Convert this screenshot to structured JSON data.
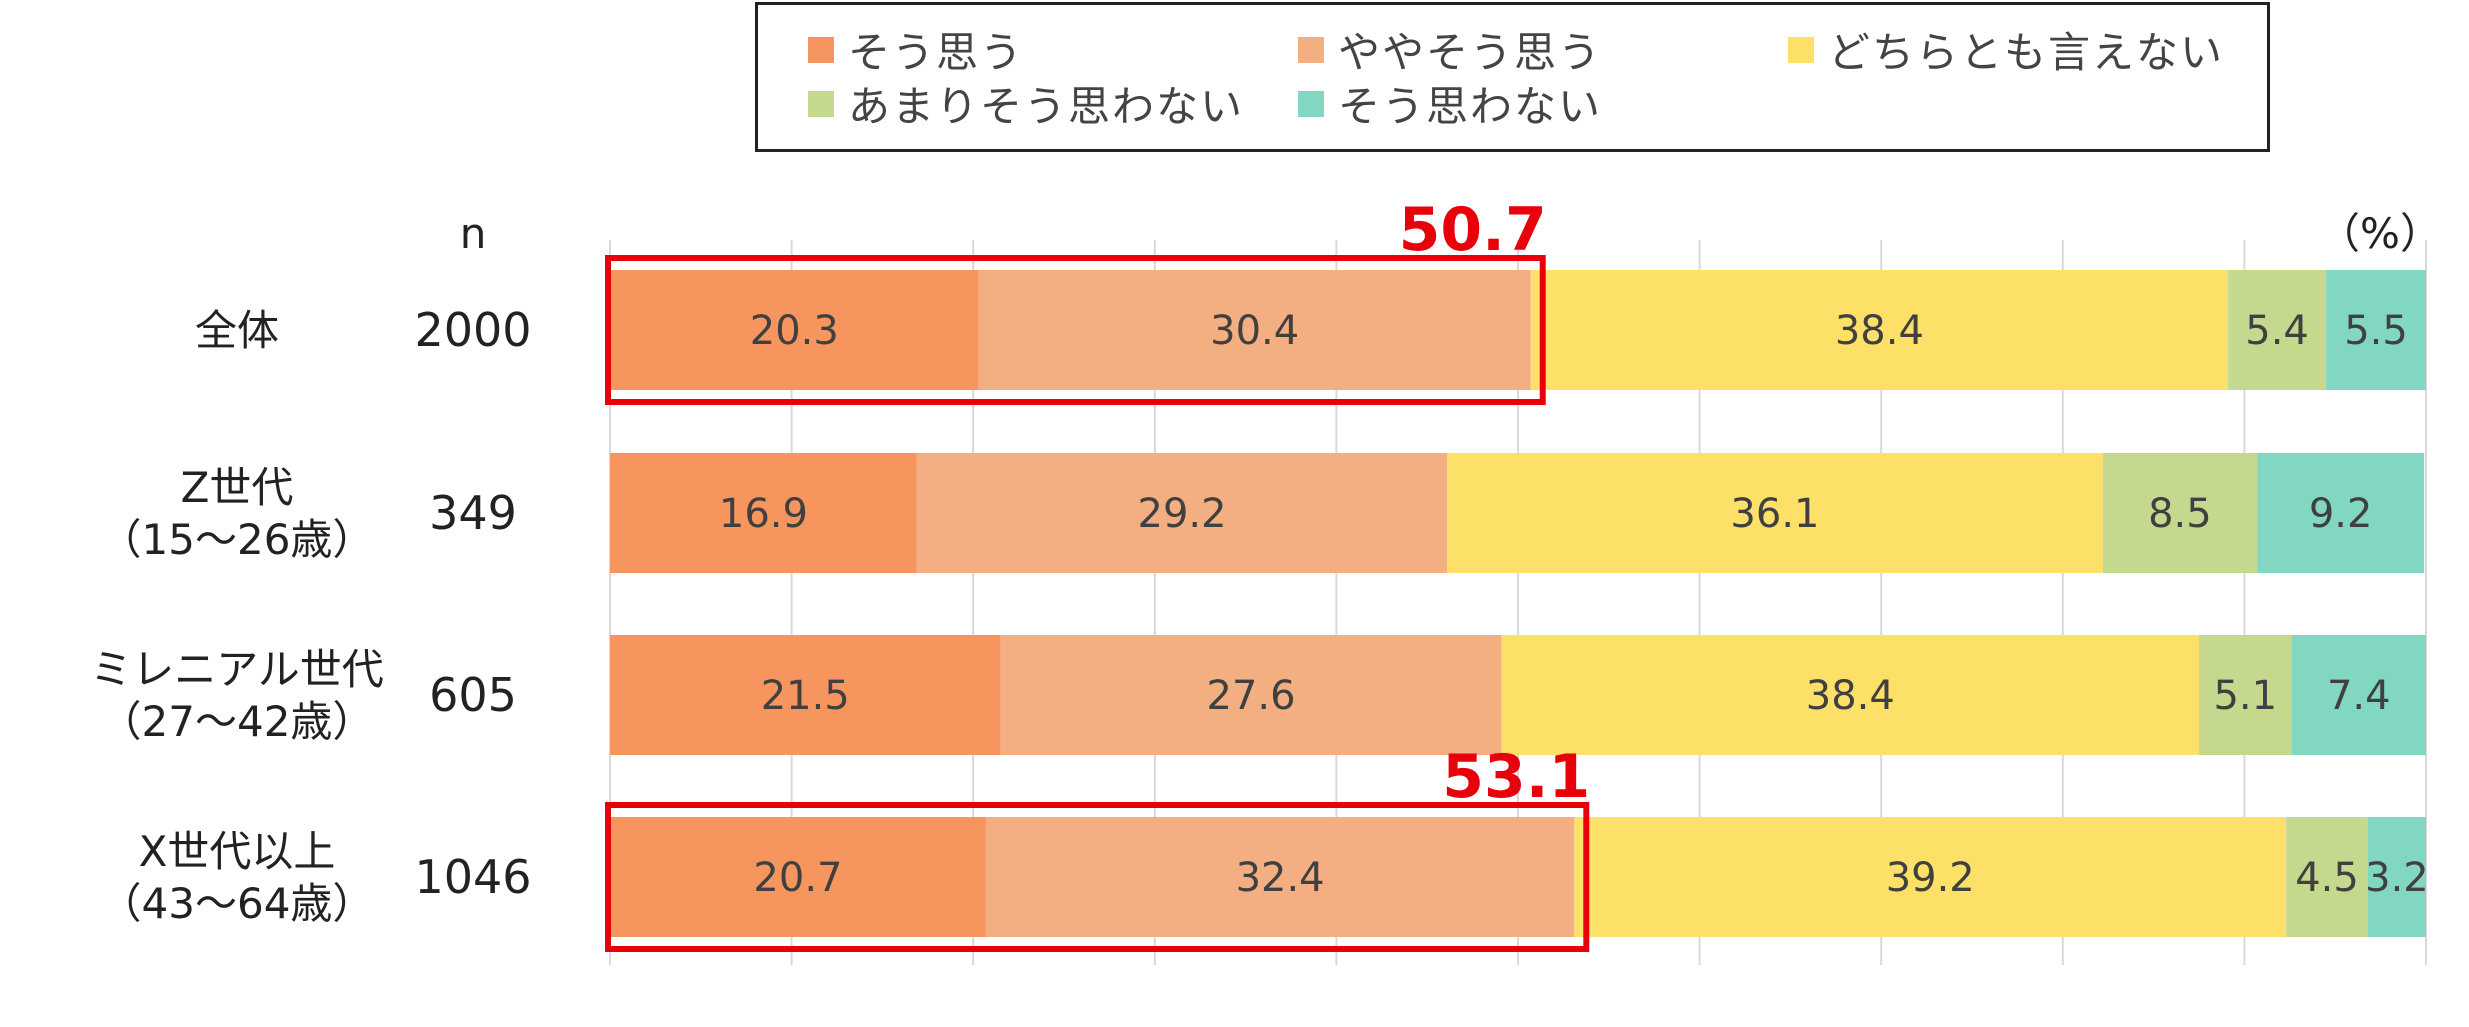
{
  "legend": {
    "items": [
      {
        "label": "そう思う",
        "color": "#F7955F"
      },
      {
        "label": "ややそう思う",
        "color": "#F3AE82"
      },
      {
        "label": "どちらとも言えない",
        "color": "#FDE068"
      },
      {
        "label": "あまりそう思わない",
        "color": "#C5D98E"
      },
      {
        "label": "そう思わない",
        "color": "#82D7C2"
      }
    ]
  },
  "chart_data": {
    "type": "bar",
    "orientation": "horizontal",
    "stacked": true,
    "xlim": [
      0,
      100
    ],
    "grid": true,
    "unit_label": "（%）",
    "n_header": "n",
    "rows": [
      {
        "label_lines": [
          "全体"
        ],
        "n": "2000"
      },
      {
        "label_lines": [
          "Z世代",
          "（15〜26歳）"
        ],
        "n": "349"
      },
      {
        "label_lines": [
          "ミレニアル世代",
          "（27〜42歳）"
        ],
        "n": "605"
      },
      {
        "label_lines": [
          "X世代以上",
          "（43〜64歳）"
        ],
        "n": "1046"
      }
    ],
    "series": [
      {
        "name": "そう思う",
        "color": "#F7955F",
        "values": [
          20.3,
          16.9,
          21.5,
          20.7
        ]
      },
      {
        "name": "ややそう思う",
        "color": "#F3AE82",
        "values": [
          30.4,
          29.2,
          27.6,
          32.4
        ]
      },
      {
        "name": "どちらとも言えない",
        "color": "#FDE068",
        "values": [
          38.4,
          36.1,
          38.4,
          39.2
        ]
      },
      {
        "name": "あまりそう思わない",
        "color": "#C5D98E",
        "values": [
          5.4,
          8.5,
          5.1,
          4.5
        ]
      },
      {
        "name": "そう思わない",
        "color": "#82D7C2",
        "values": [
          5.5,
          9.2,
          7.4,
          3.2
        ]
      }
    ],
    "value_labels": [
      [
        "20.3",
        "30.4",
        "38.4",
        "5.4",
        "5.5"
      ],
      [
        "16.9",
        "29.2",
        "36.1",
        "8.5",
        "9.2"
      ],
      [
        "21.5",
        "27.6",
        "38.4",
        "5.1",
        "7.4"
      ],
      [
        "20.7",
        "32.4",
        "39.2",
        "4.5",
        "3.2"
      ]
    ],
    "annotations": [
      {
        "row": 0,
        "value": 50.7,
        "text": "50.7",
        "color": "#E8000B"
      },
      {
        "row": 3,
        "value": 53.1,
        "text": "53.1",
        "color": "#E8000B"
      }
    ]
  }
}
